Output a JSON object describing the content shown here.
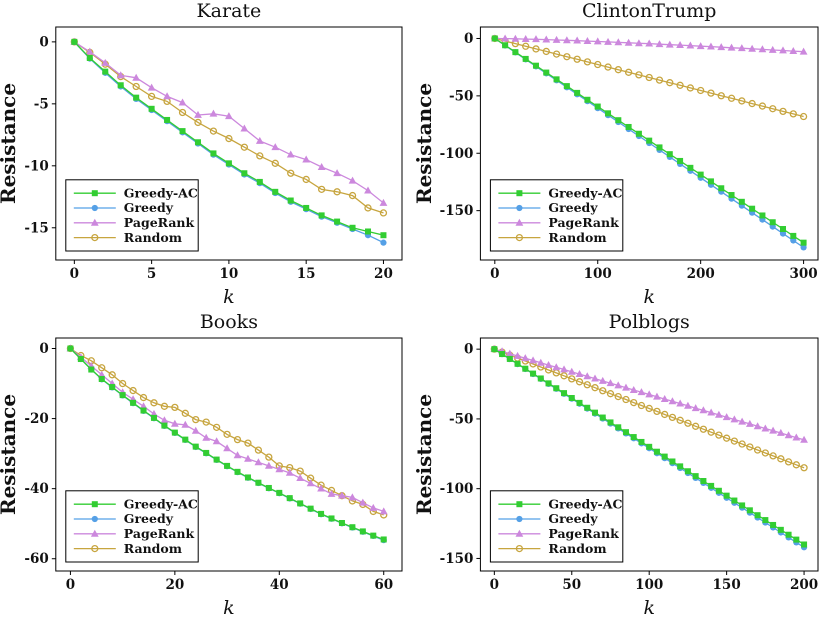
{
  "figure": {
    "background": "#ffffff",
    "text_color": "#111111",
    "series_colors": {
      "greedy_ac": "#32CD32",
      "greedy": "#55A0E6",
      "pagerank": "#CC88DD",
      "random": "#C7A53F"
    }
  },
  "chart_data": [
    {
      "id": "karate",
      "type": "line",
      "title": "Karate",
      "xlabel": "k",
      "ylabel": "Resistance",
      "xlim": [
        -1.2,
        21.2
      ],
      "ylim": [
        -17.6,
        1.2
      ],
      "xticks": [
        0,
        5,
        10,
        15,
        20
      ],
      "yticks": [
        0,
        -5,
        -10,
        -15
      ],
      "legend_position": "lower-left",
      "x": [
        0,
        1,
        2,
        3,
        4,
        5,
        6,
        7,
        8,
        9,
        10,
        11,
        12,
        13,
        14,
        15,
        16,
        17,
        18,
        19,
        20
      ],
      "series": [
        {
          "name": "Greedy-AC",
          "color": "#32CD32",
          "marker": "square",
          "values": [
            0,
            -1.3,
            -2.4,
            -3.5,
            -4.5,
            -5.4,
            -6.3,
            -7.2,
            -8.1,
            -9.0,
            -9.8,
            -10.6,
            -11.3,
            -12.1,
            -12.8,
            -13.4,
            -14.0,
            -14.5,
            -15.0,
            -15.3,
            -15.6
          ]
        },
        {
          "name": "Greedy",
          "color": "#55A0E6",
          "marker": "circle",
          "values": [
            0,
            -1.35,
            -2.5,
            -3.6,
            -4.6,
            -5.5,
            -6.4,
            -7.3,
            -8.2,
            -9.1,
            -9.9,
            -10.7,
            -11.4,
            -12.2,
            -12.9,
            -13.5,
            -14.1,
            -14.6,
            -15.1,
            -15.6,
            -16.2
          ]
        },
        {
          "name": "PageRank",
          "color": "#CC88DD",
          "marker": "triangle",
          "values": [
            0,
            -0.8,
            -1.7,
            -2.7,
            -2.9,
            -3.7,
            -4.4,
            -4.9,
            -5.9,
            -5.8,
            -6.0,
            -7.0,
            -8.0,
            -8.5,
            -9.1,
            -9.5,
            -10.1,
            -10.6,
            -11.2,
            -12.0,
            -13.0
          ]
        },
        {
          "name": "Random",
          "color": "#C7A53F",
          "marker": "circle-open",
          "values": [
            0,
            -0.85,
            -1.8,
            -2.8,
            -3.6,
            -4.4,
            -4.8,
            -5.7,
            -6.5,
            -7.2,
            -7.8,
            -8.5,
            -9.2,
            -9.8,
            -10.6,
            -11.1,
            -11.9,
            -12.1,
            -12.4,
            -13.4,
            -13.8
          ]
        }
      ]
    },
    {
      "id": "clintontrump",
      "type": "line",
      "title": "ClintonTrump",
      "xlabel": "k",
      "ylabel": "Resistance",
      "xlim": [
        -14,
        314
      ],
      "ylim": [
        -193,
        10
      ],
      "xticks": [
        0,
        100,
        200,
        300
      ],
      "yticks": [
        0,
        -50,
        -100,
        -150
      ],
      "legend_position": "lower-left",
      "x": [
        0,
        10,
        20,
        30,
        40,
        50,
        60,
        70,
        80,
        90,
        100,
        110,
        120,
        130,
        140,
        150,
        160,
        170,
        180,
        190,
        200,
        210,
        220,
        230,
        240,
        250,
        260,
        270,
        280,
        290,
        300
      ],
      "series": [
        {
          "name": "Greedy-AC",
          "color": "#32CD32",
          "marker": "square",
          "values": [
            0,
            -5.9,
            -11.9,
            -17.8,
            -23.7,
            -29.7,
            -35.6,
            -41.5,
            -47.4,
            -53.4,
            -59.3,
            -65.2,
            -71.2,
            -77.1,
            -83.0,
            -89.0,
            -94.9,
            -100.8,
            -106.7,
            -112.7,
            -118.6,
            -124.5,
            -130.5,
            -136.4,
            -142.3,
            -148.3,
            -154.2,
            -160.1,
            -166.0,
            -172.0,
            -177.9
          ]
        },
        {
          "name": "Greedy",
          "color": "#55A0E6",
          "marker": "circle",
          "values": [
            0,
            -6.1,
            -12.1,
            -18.2,
            -24.3,
            -30.4,
            -36.4,
            -42.5,
            -48.6,
            -54.6,
            -60.7,
            -66.8,
            -72.8,
            -78.9,
            -85.0,
            -91.1,
            -97.1,
            -103.2,
            -109.3,
            -115.3,
            -121.4,
            -127.5,
            -133.5,
            -139.6,
            -145.7,
            -151.8,
            -157.8,
            -163.9,
            -170.0,
            -176.0,
            -182.0
          ]
        },
        {
          "name": "PageRank",
          "color": "#CC88DD",
          "marker": "triangle",
          "values": [
            0,
            -0.1,
            -0.3,
            -0.5,
            -0.7,
            -1.0,
            -1.3,
            -1.6,
            -1.9,
            -2.3,
            -2.6,
            -3.0,
            -3.4,
            -3.8,
            -4.2,
            -4.5,
            -5.0,
            -5.4,
            -5.8,
            -6.2,
            -6.7,
            -7.1,
            -7.6,
            -8.1,
            -8.5,
            -9.0,
            -9.5,
            -10.0,
            -10.5,
            -11.0,
            -11.5
          ]
        },
        {
          "name": "Random",
          "color": "#C7A53F",
          "marker": "circle-open",
          "values": [
            0,
            -2.3,
            -4.5,
            -6.8,
            -9.1,
            -11.3,
            -13.6,
            -15.9,
            -18.1,
            -20.4,
            -22.7,
            -24.9,
            -27.2,
            -29.5,
            -31.7,
            -34.0,
            -36.3,
            -38.5,
            -40.8,
            -43.1,
            -45.3,
            -47.6,
            -49.9,
            -52.1,
            -54.4,
            -56.7,
            -58.9,
            -61.2,
            -63.5,
            -65.7,
            -68.0
          ]
        }
      ]
    },
    {
      "id": "books",
      "type": "line",
      "title": "Books",
      "xlabel": "k",
      "ylabel": "Resistance",
      "xlim": [
        -2.8,
        63.5
      ],
      "ylim": [
        -63.5,
        3.0
      ],
      "xticks": [
        0,
        20,
        40,
        60
      ],
      "yticks": [
        0,
        -20,
        -40,
        -60
      ],
      "legend_position": "lower-left",
      "x": [
        0,
        2,
        4,
        6,
        8,
        10,
        12,
        14,
        16,
        18,
        20,
        22,
        24,
        26,
        28,
        30,
        32,
        34,
        36,
        38,
        40,
        42,
        44,
        46,
        48,
        50,
        52,
        54,
        56,
        58,
        60
      ],
      "series": [
        {
          "name": "Greedy-AC",
          "color": "#32CD32",
          "marker": "square",
          "values": [
            0,
            -3.0,
            -6.0,
            -8.7,
            -11.0,
            -13.3,
            -15.5,
            -17.7,
            -19.8,
            -22.0,
            -24.0,
            -26.0,
            -28.0,
            -29.8,
            -31.7,
            -33.5,
            -35.2,
            -36.8,
            -38.3,
            -39.8,
            -41.2,
            -42.7,
            -44.2,
            -45.7,
            -47.2,
            -48.5,
            -49.8,
            -51.0,
            -52.2,
            -53.4,
            -54.5
          ]
        },
        {
          "name": "Greedy",
          "color": "#55A0E6",
          "marker": "circle",
          "values": [
            0,
            -3.0,
            -6.0,
            -8.8,
            -11.1,
            -13.4,
            -15.6,
            -17.8,
            -19.9,
            -22.1,
            -24.1,
            -26.1,
            -28.1,
            -29.9,
            -31.8,
            -33.6,
            -35.3,
            -36.9,
            -38.4,
            -39.9,
            -41.3,
            -42.8,
            -44.3,
            -45.8,
            -47.3,
            -48.6,
            -49.9,
            -51.1,
            -52.3,
            -53.5,
            -54.7
          ]
        },
        {
          "name": "PageRank",
          "color": "#CC88DD",
          "marker": "triangle",
          "values": [
            0,
            -2.5,
            -5.0,
            -7.5,
            -10.0,
            -12.5,
            -14.5,
            -16.5,
            -18.7,
            -20.5,
            -21.5,
            -21.8,
            -23.5,
            -25.5,
            -26.5,
            -28.5,
            -30.5,
            -31.5,
            -32.5,
            -33.5,
            -34.5,
            -35.5,
            -37.0,
            -38.5,
            -40.0,
            -41.5,
            -42.0,
            -42.5,
            -44.0,
            -45.5,
            -46.5
          ]
        },
        {
          "name": "Random",
          "color": "#C7A53F",
          "marker": "circle-open",
          "values": [
            0,
            -2.0,
            -3.5,
            -5.5,
            -7.5,
            -10.0,
            -12.0,
            -14.0,
            -15.5,
            -16.5,
            -16.8,
            -18.5,
            -20.3,
            -21.0,
            -22.5,
            -24.5,
            -26.0,
            -27.0,
            -29.0,
            -31.0,
            -33.5,
            -34.0,
            -35.0,
            -37.0,
            -39.0,
            -40.5,
            -42.0,
            -43.5,
            -44.5,
            -46.5,
            -47.5
          ]
        }
      ]
    },
    {
      "id": "polblogs",
      "type": "line",
      "title": "Polblogs",
      "xlabel": "k",
      "ylabel": "Resistance",
      "xlim": [
        -9,
        209
      ],
      "ylim": [
        -159,
        8
      ],
      "xticks": [
        0,
        50,
        100,
        150,
        200
      ],
      "yticks": [
        0,
        -50,
        -100,
        -150
      ],
      "legend_position": "lower-left",
      "x": [
        0,
        5,
        10,
        15,
        20,
        25,
        30,
        35,
        40,
        45,
        50,
        55,
        60,
        65,
        70,
        75,
        80,
        85,
        90,
        95,
        100,
        105,
        110,
        115,
        120,
        125,
        130,
        135,
        140,
        145,
        150,
        155,
        160,
        165,
        170,
        175,
        180,
        185,
        190,
        195,
        200
      ],
      "series": [
        {
          "name": "Greedy-AC",
          "color": "#32CD32",
          "marker": "square",
          "values": [
            0,
            -3.5,
            -7.0,
            -10.5,
            -14.0,
            -17.5,
            -21.0,
            -24.5,
            -28.0,
            -31.5,
            -35.0,
            -38.5,
            -42.0,
            -45.5,
            -49.0,
            -52.5,
            -56.0,
            -59.5,
            -63.0,
            -66.5,
            -70.0,
            -73.5,
            -77.0,
            -80.5,
            -84.0,
            -87.5,
            -91.0,
            -94.5,
            -98.0,
            -101.5,
            -105.0,
            -108.5,
            -112.0,
            -115.5,
            -119.0,
            -122.5,
            -126.0,
            -129.5,
            -133.0,
            -136.5,
            -140.0
          ]
        },
        {
          "name": "Greedy",
          "color": "#55A0E6",
          "marker": "circle",
          "values": [
            0,
            -3.6,
            -7.1,
            -10.7,
            -14.2,
            -17.8,
            -21.3,
            -24.9,
            -28.4,
            -32.0,
            -35.5,
            -39.1,
            -42.6,
            -46.2,
            -49.7,
            -53.3,
            -56.8,
            -60.4,
            -63.9,
            -67.5,
            -71.0,
            -74.6,
            -78.1,
            -81.7,
            -85.2,
            -88.8,
            -92.3,
            -95.9,
            -99.4,
            -103.0,
            -106.5,
            -110.1,
            -113.6,
            -117.2,
            -120.7,
            -124.3,
            -127.8,
            -131.4,
            -134.9,
            -138.5,
            -142.0
          ]
        },
        {
          "name": "PageRank",
          "color": "#CC88DD",
          "marker": "triangle",
          "values": [
            0,
            -1.6,
            -3.3,
            -4.9,
            -6.5,
            -8.1,
            -9.8,
            -11.4,
            -13.0,
            -14.6,
            -16.3,
            -17.9,
            -19.5,
            -21.1,
            -22.8,
            -24.4,
            -26.0,
            -27.6,
            -29.3,
            -30.9,
            -32.5,
            -34.1,
            -35.8,
            -37.4,
            -39.0,
            -40.6,
            -42.3,
            -43.9,
            -45.5,
            -47.1,
            -48.8,
            -50.4,
            -52.0,
            -53.6,
            -55.3,
            -56.9,
            -58.5,
            -60.1,
            -61.8,
            -63.4,
            -65.0
          ]
        },
        {
          "name": "Random",
          "color": "#C7A53F",
          "marker": "circle-open",
          "values": [
            0,
            -2.1,
            -4.3,
            -6.4,
            -8.5,
            -10.6,
            -12.8,
            -14.9,
            -17.0,
            -19.1,
            -21.3,
            -23.4,
            -25.5,
            -27.6,
            -29.8,
            -31.9,
            -34.0,
            -36.1,
            -38.3,
            -40.4,
            -42.5,
            -44.6,
            -46.8,
            -48.9,
            -51.0,
            -53.1,
            -55.3,
            -57.4,
            -59.5,
            -61.6,
            -63.8,
            -65.9,
            -68.0,
            -70.1,
            -72.3,
            -74.4,
            -76.5,
            -78.6,
            -80.8,
            -82.9,
            -85.0
          ]
        }
      ]
    }
  ]
}
